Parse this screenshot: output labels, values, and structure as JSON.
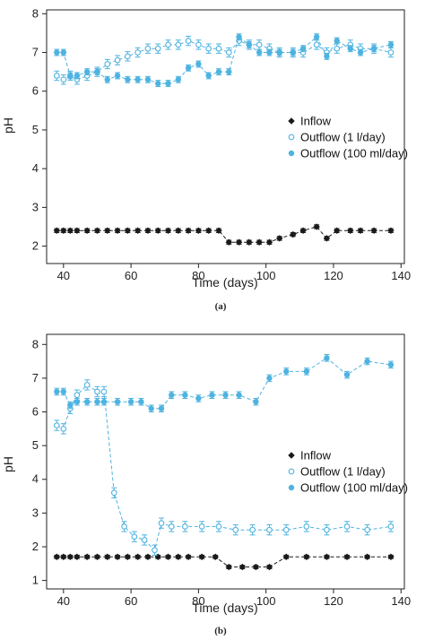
{
  "chart_data": [
    {
      "type": "line",
      "panel_label": "(a)",
      "xlabel": "Time (days)",
      "ylabel": "pH",
      "xlim": [
        35,
        141
      ],
      "ylim": [
        1.55,
        8.1
      ],
      "xticks": [
        40,
        60,
        80,
        100,
        120,
        140
      ],
      "yticks": [
        2,
        3,
        4,
        5,
        6,
        7,
        8
      ],
      "grid": false,
      "legend_position": "center-right",
      "series": [
        {
          "name": "Inflow",
          "color": "#1a1a1a",
          "marker": "diamond",
          "err": 0.05,
          "x": [
            38,
            40,
            42,
            44,
            47,
            50,
            53,
            56,
            59,
            62,
            65,
            68,
            71,
            74,
            77,
            80,
            83,
            86,
            89,
            92,
            95,
            98,
            101,
            104,
            108,
            111,
            115,
            118,
            121,
            125,
            128,
            132,
            137
          ],
          "y": [
            2.4,
            2.4,
            2.4,
            2.4,
            2.4,
            2.4,
            2.4,
            2.4,
            2.4,
            2.4,
            2.4,
            2.4,
            2.4,
            2.4,
            2.4,
            2.4,
            2.4,
            2.4,
            2.1,
            2.1,
            2.1,
            2.1,
            2.1,
            2.2,
            2.3,
            2.4,
            2.5,
            2.2,
            2.4,
            2.4,
            2.4,
            2.4,
            2.4
          ]
        },
        {
          "name": "Outflow (1 l/day)",
          "color": "#4fb3e0",
          "marker": "open",
          "err": 0.12,
          "x": [
            38,
            40,
            42,
            44,
            47,
            50,
            53,
            56,
            59,
            62,
            65,
            68,
            71,
            74,
            77,
            80,
            83,
            86,
            89,
            92,
            95,
            98,
            101,
            104,
            108,
            111,
            115,
            118,
            121,
            125,
            128,
            132,
            137
          ],
          "y": [
            6.4,
            6.3,
            6.4,
            6.3,
            6.4,
            6.5,
            6.7,
            6.8,
            6.9,
            7.0,
            7.1,
            7.1,
            7.2,
            7.2,
            7.3,
            7.2,
            7.1,
            7.1,
            7.0,
            7.3,
            7.2,
            7.2,
            7.1,
            7.0,
            7.0,
            7.0,
            7.2,
            7.0,
            7.1,
            7.2,
            7.1,
            7.1,
            7.0
          ]
        },
        {
          "name": "Outflow (100 ml/day)",
          "color": "#4fb3e0",
          "marker": "filled",
          "err": 0.08,
          "x": [
            38,
            40,
            42,
            44,
            47,
            50,
            53,
            56,
            59,
            62,
            65,
            68,
            71,
            74,
            77,
            80,
            83,
            86,
            89,
            92,
            95,
            98,
            101,
            104,
            108,
            111,
            115,
            118,
            121,
            125,
            128,
            132,
            137
          ],
          "y": [
            7.0,
            7.0,
            6.4,
            6.4,
            6.5,
            6.5,
            6.3,
            6.4,
            6.3,
            6.3,
            6.3,
            6.2,
            6.2,
            6.3,
            6.6,
            6.7,
            6.4,
            6.5,
            6.5,
            7.4,
            7.2,
            7.0,
            7.0,
            7.0,
            7.0,
            7.1,
            7.4,
            6.9,
            7.3,
            7.1,
            7.0,
            7.1,
            7.2
          ]
        }
      ]
    },
    {
      "type": "line",
      "panel_label": "(b)",
      "xlabel": "Time (days)",
      "ylabel": "pH",
      "xlim": [
        35,
        141
      ],
      "ylim": [
        0.75,
        8.3
      ],
      "xticks": [
        40,
        60,
        80,
        100,
        120,
        140
      ],
      "yticks": [
        1,
        2,
        3,
        4,
        5,
        6,
        7,
        8
      ],
      "grid": false,
      "legend_position": "center-right",
      "series": [
        {
          "name": "Inflow",
          "color": "#1a1a1a",
          "marker": "diamond",
          "err": 0.05,
          "x": [
            38,
            40,
            42,
            44,
            47,
            50,
            53,
            56,
            59,
            62,
            65,
            68,
            71,
            74,
            77,
            81,
            85,
            89,
            93,
            97,
            101,
            106,
            112,
            118,
            124,
            130,
            137
          ],
          "y": [
            1.7,
            1.7,
            1.7,
            1.7,
            1.7,
            1.7,
            1.7,
            1.7,
            1.7,
            1.7,
            1.7,
            1.7,
            1.7,
            1.7,
            1.7,
            1.7,
            1.7,
            1.4,
            1.4,
            1.4,
            1.4,
            1.7,
            1.7,
            1.7,
            1.7,
            1.7,
            1.7
          ]
        },
        {
          "name": "Outflow (1 l/day)",
          "color": "#4fb3e0",
          "marker": "open",
          "err": 0.15,
          "x": [
            38,
            40,
            42,
            44,
            47,
            50,
            52,
            55,
            58,
            61,
            64,
            67,
            69,
            72,
            76,
            81,
            86,
            91,
            96,
            101,
            106,
            112,
            118,
            124,
            130,
            137
          ],
          "y": [
            5.6,
            5.5,
            6.1,
            6.5,
            6.8,
            6.6,
            6.6,
            3.6,
            2.6,
            2.3,
            2.2,
            1.9,
            2.7,
            2.6,
            2.6,
            2.6,
            2.6,
            2.5,
            2.5,
            2.5,
            2.5,
            2.6,
            2.5,
            2.6,
            2.5,
            2.6
          ]
        },
        {
          "name": "Outflow (100 ml/day)",
          "color": "#4fb3e0",
          "marker": "filled",
          "err": 0.1,
          "x": [
            38,
            40,
            42,
            44,
            47,
            50,
            52,
            56,
            60,
            63,
            66,
            69,
            72,
            76,
            80,
            84,
            88,
            92,
            97,
            101,
            106,
            112,
            118,
            124,
            130,
            137
          ],
          "y": [
            6.6,
            6.6,
            6.2,
            6.3,
            6.3,
            6.3,
            6.3,
            6.3,
            6.3,
            6.3,
            6.1,
            6.1,
            6.5,
            6.5,
            6.4,
            6.5,
            6.5,
            6.5,
            6.3,
            7.0,
            7.2,
            7.2,
            7.6,
            7.1,
            7.5,
            7.4
          ]
        }
      ]
    }
  ]
}
